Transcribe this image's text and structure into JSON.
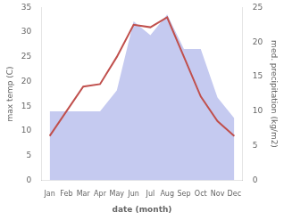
{
  "chart_data": {
    "type": "line",
    "categories": [
      "Jan",
      "Feb",
      "Mar",
      "Apr",
      "May",
      "Jun",
      "Jul",
      "Aug",
      "Sep",
      "Oct",
      "Nov",
      "Dec"
    ],
    "series": [
      {
        "type": "area",
        "axis": "y2",
        "color": "#c5caf0",
        "values": [
          10,
          10,
          10,
          10,
          13,
          23,
          21,
          24,
          19,
          19,
          12,
          9
        ]
      },
      {
        "type": "line",
        "color": "#c0504d",
        "values": [
          9,
          14,
          19,
          19.5,
          25,
          31.5,
          31,
          33,
          25,
          17,
          12,
          9
        ]
      }
    ],
    "xlabel": "date (month)",
    "ylabel": "max temp (C)",
    "y2label": "med. precipitation (kg/m2)",
    "ylim": [
      0,
      35
    ],
    "yticks": [
      0,
      5,
      10,
      15,
      20,
      25,
      30,
      35
    ],
    "y2lim": [
      0,
      25
    ],
    "y2ticks": [
      0,
      5,
      10,
      15,
      20,
      25
    ],
    "grid": false
  }
}
